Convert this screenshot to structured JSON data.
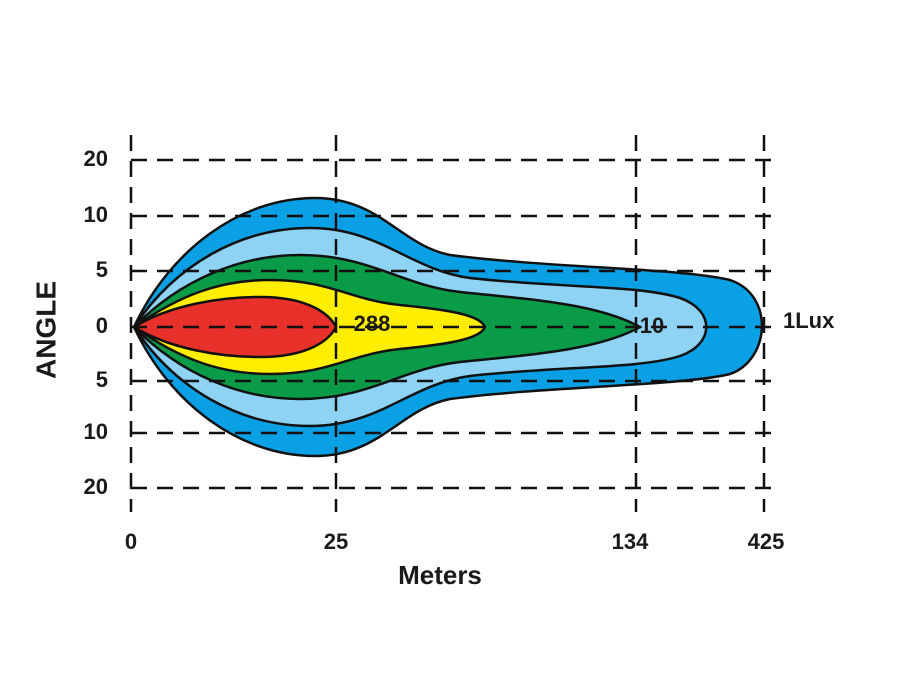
{
  "y_axis": {
    "title": "ANGLE",
    "labels": [
      "20",
      "10",
      "5",
      "0",
      "5",
      "10",
      "20"
    ]
  },
  "x_axis": {
    "title": "Meters",
    "labels": [
      "0",
      "25",
      "134",
      "425"
    ]
  },
  "annotations": [
    "288",
    "10",
    "1Lux"
  ]
}
